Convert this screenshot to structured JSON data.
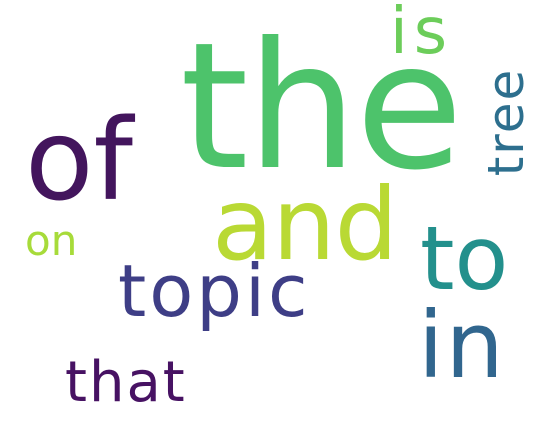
{
  "words": [
    {
      "id": "the",
      "text": "the",
      "color": "#4dc36b"
    },
    {
      "id": "of",
      "text": "of",
      "color": "#43155d"
    },
    {
      "id": "and",
      "text": "and",
      "color": "#b9d934"
    },
    {
      "id": "to",
      "text": "to",
      "color": "#23908c"
    },
    {
      "id": "in",
      "text": "in",
      "color": "#31668e"
    },
    {
      "id": "topic",
      "text": "topic",
      "color": "#3e3e86"
    },
    {
      "id": "that",
      "text": "that",
      "color": "#471263"
    },
    {
      "id": "on",
      "text": "on",
      "color": "#a7db3a"
    },
    {
      "id": "is",
      "text": "is",
      "color": "#6ccd5a"
    },
    {
      "id": "tree",
      "text": "tree",
      "color": "#2d6f8e"
    }
  ]
}
